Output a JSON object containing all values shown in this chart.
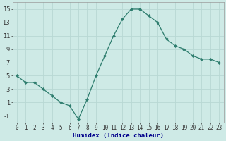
{
  "x": [
    0,
    1,
    2,
    3,
    4,
    5,
    6,
    7,
    8,
    9,
    10,
    11,
    12,
    13,
    14,
    15,
    16,
    17,
    18,
    19,
    20,
    21,
    22,
    23
  ],
  "y": [
    5,
    4,
    4,
    3,
    2,
    1,
    0.5,
    -1.5,
    1.5,
    5,
    8,
    11,
    13.5,
    15,
    15,
    14,
    13,
    10.5,
    9.5,
    9,
    8,
    7.5,
    7.5,
    7
  ],
  "xlabel": "Humidex (Indice chaleur)",
  "line_color": "#2e7d6e",
  "marker": "D",
  "marker_size": 2.0,
  "bg_color": "#ceeae6",
  "grid_color": "#b8d8d4",
  "ylim": [
    -2,
    16
  ],
  "yticks": [
    -1,
    1,
    3,
    5,
    7,
    9,
    11,
    13,
    15
  ],
  "xlim": [
    -0.5,
    23.5
  ],
  "xticks": [
    0,
    1,
    2,
    3,
    4,
    5,
    6,
    7,
    8,
    9,
    10,
    11,
    12,
    13,
    14,
    15,
    16,
    17,
    18,
    19,
    20,
    21,
    22,
    23
  ],
  "xlabel_color": "#00008b",
  "xlabel_fontsize": 6.5,
  "tick_fontsize": 5.5,
  "ytick_fontsize": 6.0
}
